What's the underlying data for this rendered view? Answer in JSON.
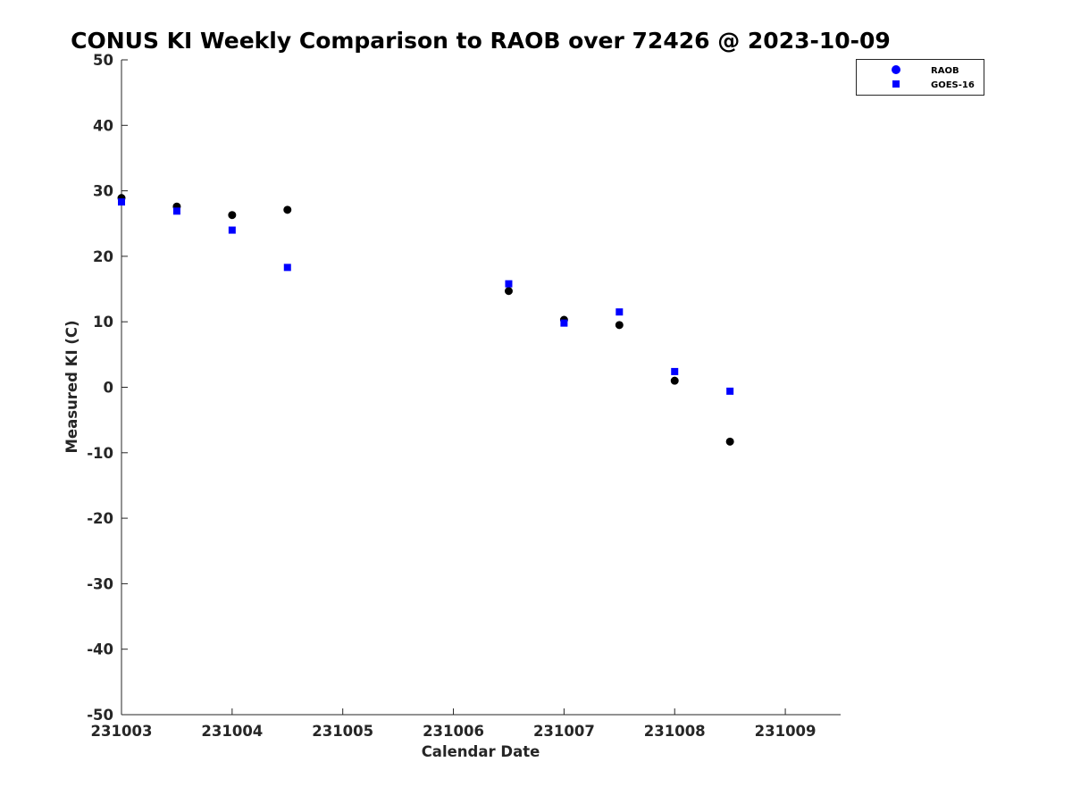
{
  "chart_data": {
    "type": "scatter",
    "title": "CONUS KI Weekly Comparison to RAOB over 72426 @ 2023-10-09",
    "xlabel": "Calendar Date",
    "ylabel": "Measured KI (C)",
    "xlim": [
      231003,
      231009.5
    ],
    "ylim": [
      -50,
      50
    ],
    "x_ticks": [
      231003,
      231004,
      231005,
      231006,
      231007,
      231008,
      231009
    ],
    "x_tick_labels": [
      "231003",
      "231004",
      "231005",
      "231006",
      "231007",
      "231008",
      "231009"
    ],
    "y_ticks": [
      50,
      40,
      30,
      20,
      10,
      0,
      -10,
      -20,
      -30,
      -40,
      -50
    ],
    "y_tick_labels": [
      "50",
      "40",
      "30",
      "20",
      "10",
      "0",
      "-10",
      "-20",
      "-30",
      "-40",
      "-50"
    ],
    "grid": false,
    "legend_position": "top-right",
    "series": [
      {
        "name": "RAOB",
        "marker": "circle",
        "color": "#000000",
        "legend_color": "#0000ff",
        "x": [
          231003,
          231003.5,
          231004,
          231004.5,
          231006.5,
          231007,
          231007.5,
          231008,
          231008.5
        ],
        "y": [
          28.9,
          27.6,
          26.3,
          27.1,
          14.7,
          10.3,
          9.5,
          1.0,
          -8.3
        ]
      },
      {
        "name": "GOES-16",
        "marker": "square",
        "color": "#0000ff",
        "x": [
          231003,
          231003.5,
          231004,
          231004.5,
          231006.5,
          231007,
          231007.5,
          231008,
          231008.5
        ],
        "y": [
          28.3,
          26.9,
          24.0,
          18.3,
          15.8,
          9.8,
          11.5,
          2.4,
          -0.6
        ]
      }
    ]
  }
}
